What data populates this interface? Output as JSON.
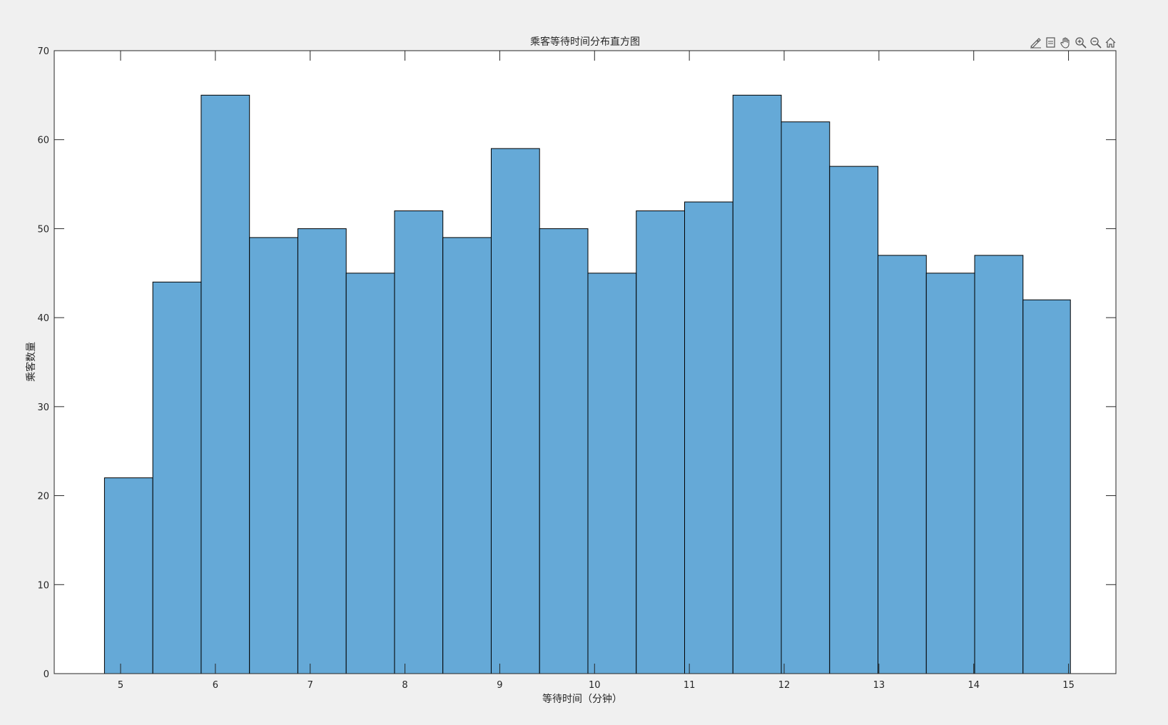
{
  "figure": {
    "background": "#f0f0f0"
  },
  "toolbar": {
    "icons": [
      "brush-edit-icon",
      "data-tips-icon",
      "pan-hand-icon",
      "zoom-in-icon",
      "zoom-out-icon",
      "home-restore-icon"
    ]
  },
  "chart_data": {
    "type": "bar",
    "title": "乘客等待时间分布直方图",
    "xlabel": "等待时间（分钟）",
    "ylabel": "乘客数量",
    "bin_edges": [
      4.83,
      5.34,
      5.85,
      6.36,
      6.87,
      7.38,
      7.89,
      8.4,
      8.91,
      9.42,
      9.93,
      10.44,
      10.95,
      11.46,
      11.97,
      12.48,
      12.99,
      13.5,
      14.01,
      14.52,
      15.02
    ],
    "values": [
      22,
      44,
      65,
      49,
      50,
      45,
      52,
      49,
      59,
      50,
      45,
      52,
      53,
      65,
      62,
      57,
      47,
      45,
      47,
      42
    ],
    "xlim": [
      4.3,
      15.5
    ],
    "ylim": [
      0,
      70
    ],
    "xticks": [
      5,
      6,
      7,
      8,
      9,
      10,
      11,
      12,
      13,
      14,
      15
    ],
    "yticks": [
      0,
      10,
      20,
      30,
      40,
      50,
      60,
      70
    ],
    "bar_color": "#65a9d7",
    "edge_color": "#000000",
    "grid": false,
    "legend": "none"
  }
}
